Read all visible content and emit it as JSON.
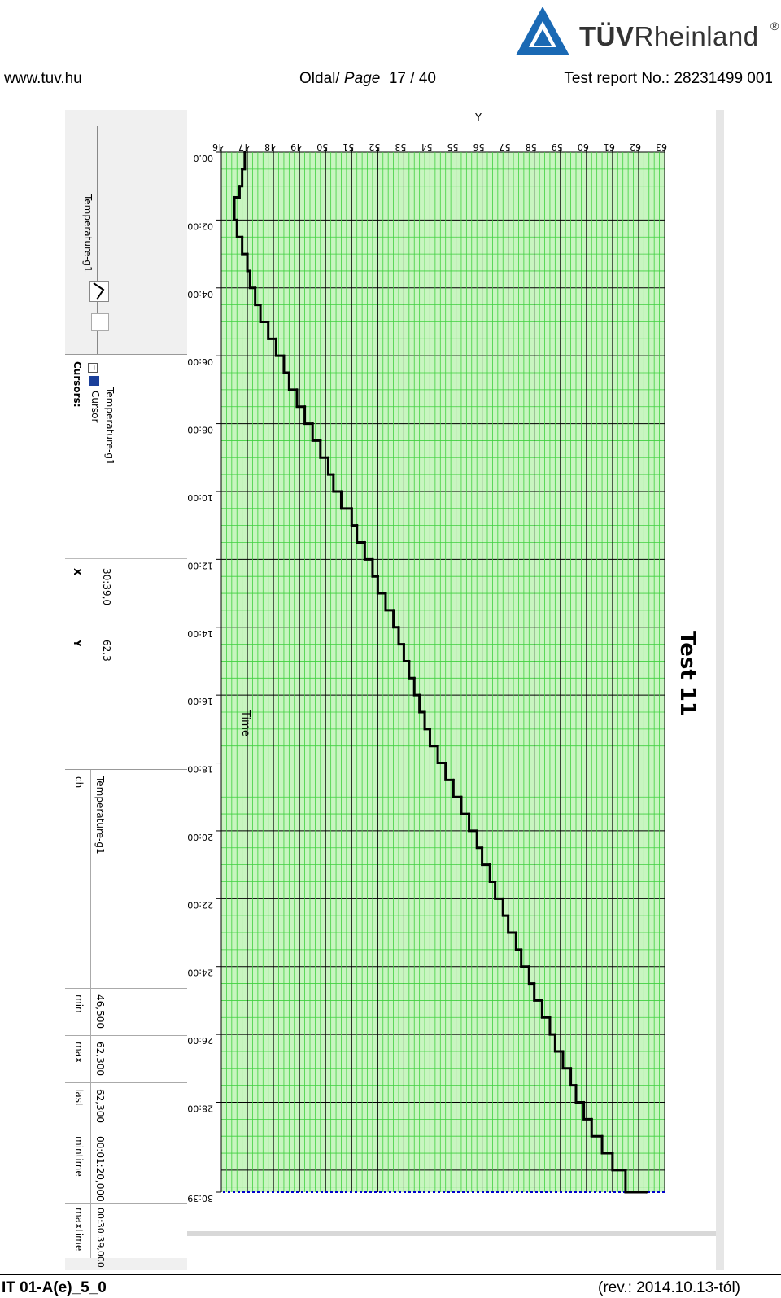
{
  "header": {
    "url": "www.tuv.hu",
    "page_prefix": "Oldal/",
    "page_word": "Page",
    "page_number": "17 / 40",
    "report": "Test report No.: 28231499 001"
  },
  "logo": {
    "brand_bold": "TÜV",
    "brand_rest": "Rheinland",
    "reg": "®",
    "accent": "#1a69b4"
  },
  "footer": {
    "doc_id": "IT 01-A(e)_5_0",
    "revision": "(rev.: 2014.10.13-tól)"
  },
  "test_title": "Test 11",
  "colors": {
    "plot_bg": "#c8f5c0",
    "grid_minor": "#40d040",
    "grid_major": "#000000",
    "series": "#000000",
    "cursor": "#0000cc"
  },
  "chart_data": {
    "type": "line",
    "xlabel": "Time",
    "ylabel": "Y",
    "x_ticks": [
      "00,0",
      "02:00,0",
      "04:00,0",
      "06:00,0",
      "08:00,0",
      "10:00,0",
      "12:00,0",
      "14:00,0",
      "16:00,0",
      "18:00,0",
      "20:00,0",
      "22:00,0",
      "24:00,0",
      "26:00,0",
      "28:00,0",
      "30:39,0"
    ],
    "y_ticks": [
      "46",
      "47",
      "48",
      "49",
      "50",
      "51",
      "52",
      "53",
      "54",
      "55",
      "56",
      "57",
      "58",
      "59",
      "60",
      "61",
      "62",
      "63"
    ],
    "xlim_minutes": [
      0,
      30.65
    ],
    "ylim": [
      46,
      63
    ],
    "grid": true,
    "series": [
      {
        "name": "Temperature-g1",
        "x_minutes": [
          0,
          0.5,
          1,
          1.33,
          1.5,
          2,
          2.5,
          3,
          3.5,
          4,
          4.5,
          5,
          5.5,
          6,
          6.5,
          7,
          7.5,
          8,
          8.5,
          9,
          9.5,
          10,
          10.5,
          11,
          11.5,
          12,
          12.5,
          13,
          13.5,
          14,
          14.5,
          15,
          15.5,
          16,
          16.5,
          17,
          17.5,
          18,
          18.5,
          19,
          19.5,
          20,
          20.5,
          21,
          21.5,
          22,
          22.5,
          23,
          23.5,
          24,
          24.5,
          25,
          25.5,
          26,
          26.5,
          27,
          27.5,
          28,
          28.5,
          29,
          29.5,
          30,
          30.65
        ],
        "y": [
          46.9,
          46.8,
          46.7,
          46.5,
          46.5,
          46.6,
          46.8,
          47.0,
          47.1,
          47.3,
          47.5,
          47.8,
          48.1,
          48.4,
          48.6,
          48.9,
          49.2,
          49.5,
          49.8,
          50.1,
          50.3,
          50.6,
          51.0,
          51.2,
          51.5,
          51.8,
          52.0,
          52.3,
          52.6,
          52.8,
          53.0,
          53.2,
          53.4,
          53.6,
          53.8,
          54.0,
          54.3,
          54.6,
          54.9,
          55.2,
          55.5,
          55.8,
          56.0,
          56.3,
          56.5,
          56.8,
          57.0,
          57.3,
          57.5,
          57.8,
          58.0,
          58.3,
          58.6,
          58.8,
          59.1,
          59.4,
          59.6,
          59.9,
          60.2,
          60.6,
          61.0,
          61.5,
          62.3
        ]
      }
    ],
    "cursor_x": "30:39,0"
  },
  "cursors_panel": {
    "title": "Cursors:",
    "tree_root": "Cursor",
    "tree_child": "Temperature-g1",
    "col_x": "X",
    "col_y": "Y",
    "x_value": "30:39,0",
    "y_value": "62,3",
    "legend_item": "Temperature-g1"
  },
  "stats_table": {
    "headers": [
      "ch",
      "min",
      "max",
      "last",
      "mintime",
      "maxtime"
    ],
    "row": [
      "Temperature-g1",
      "46,500",
      "62,300",
      "62,300",
      "00:01:20,000",
      "00:30:39,000"
    ]
  }
}
